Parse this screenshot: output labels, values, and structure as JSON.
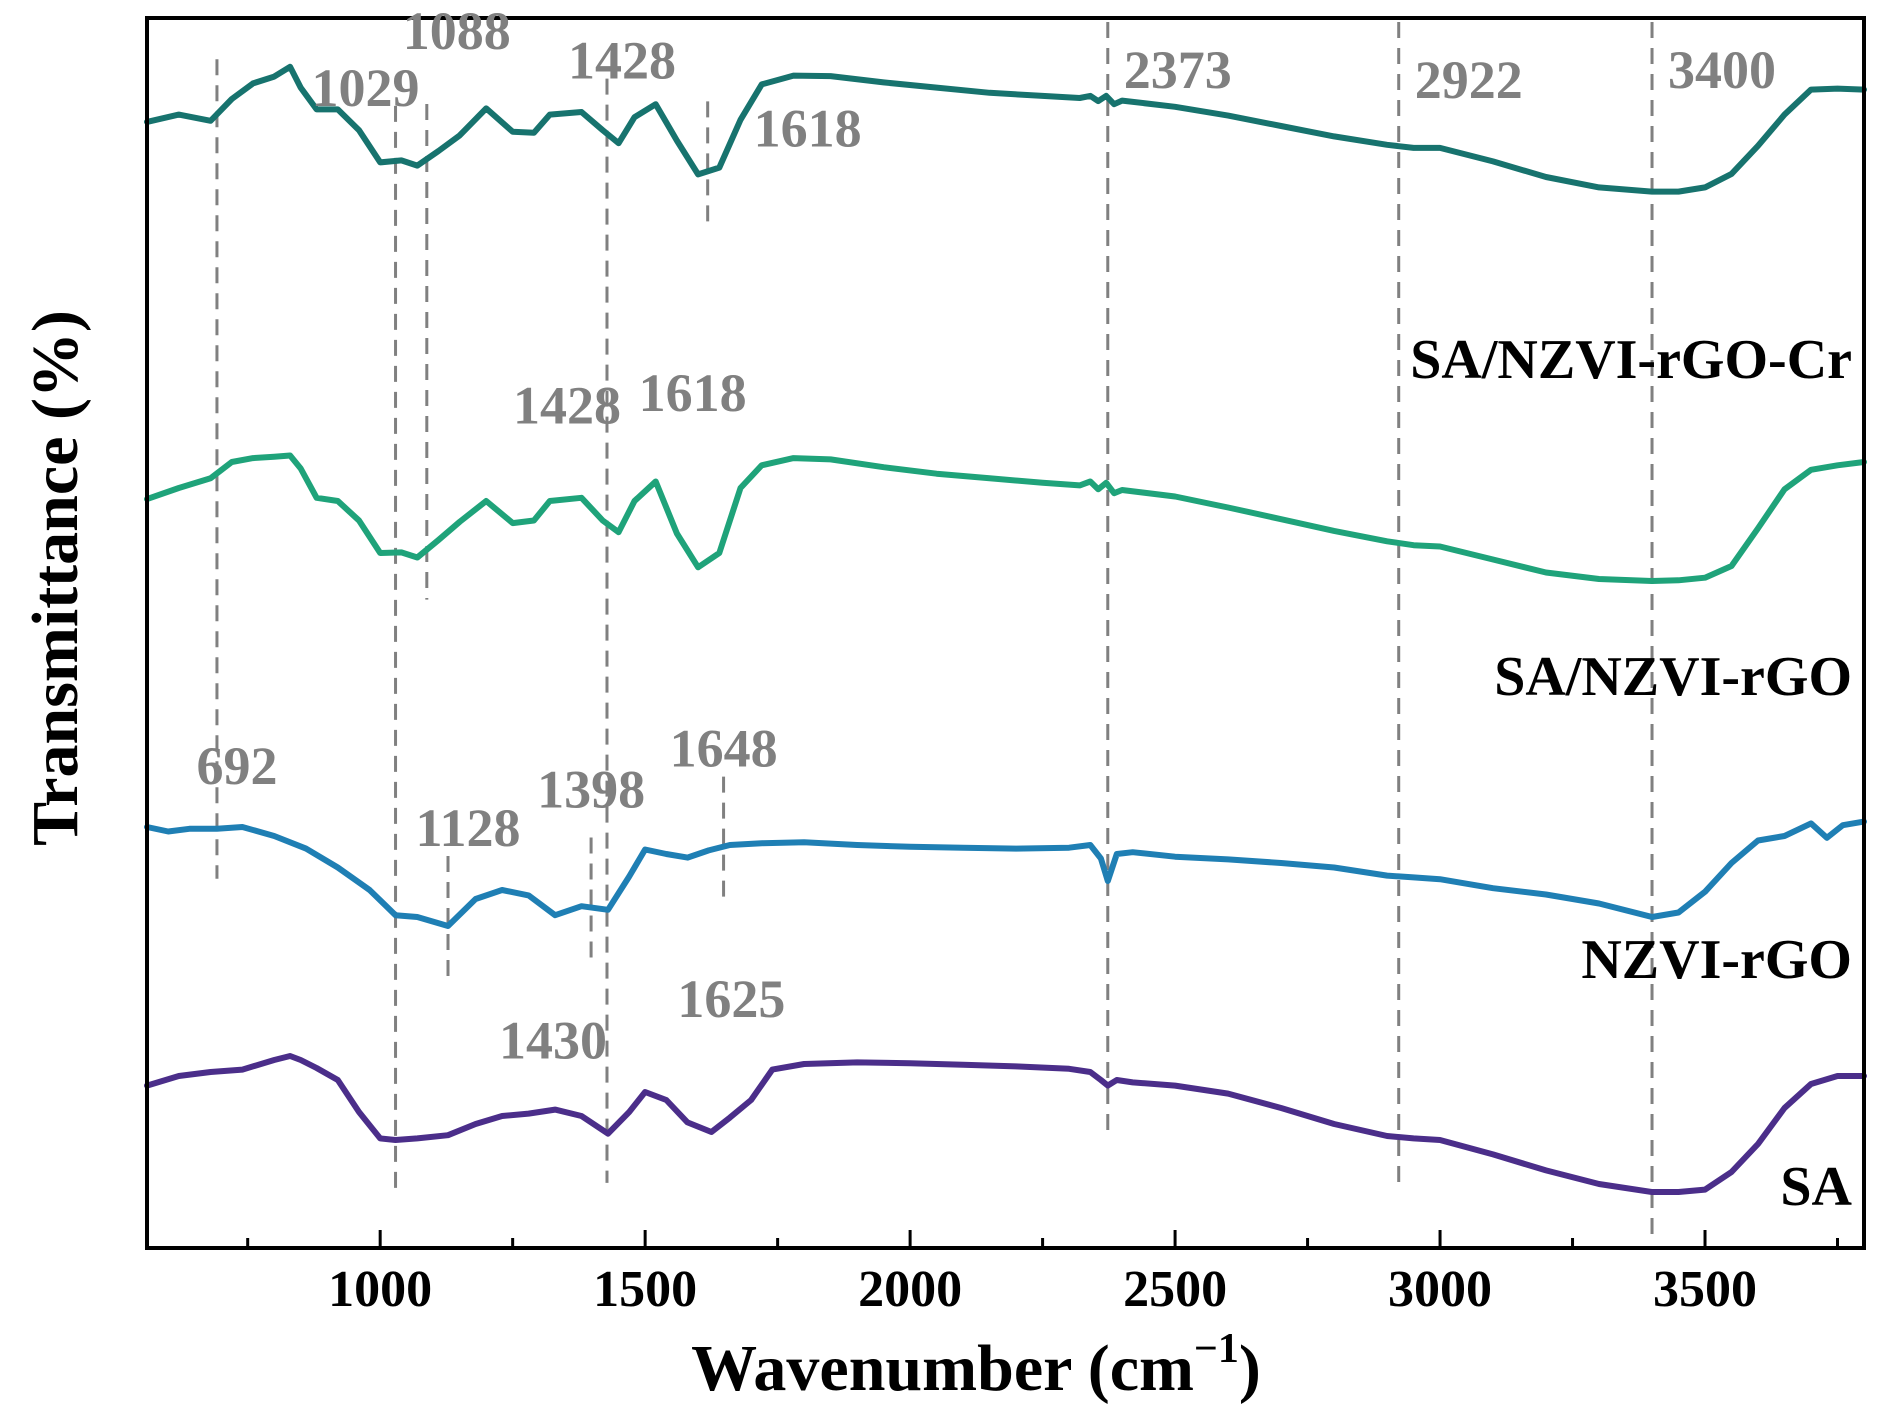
{
  "chart_data": {
    "type": "line",
    "title": "",
    "xlabel": "Wavenumber (cm",
    "xlabel_superscript": "−1",
    "xlabel_suffix": ")",
    "ylabel": "Transmittance (%)",
    "xlim": [
      560,
      3800
    ],
    "ylim": [
      0,
      1
    ],
    "x_ticks": [
      1000,
      1500,
      2000,
      2500,
      3000,
      3500
    ],
    "x_minor_ticks": [
      750,
      1250,
      1750,
      2250,
      2750,
      3250,
      3750
    ],
    "y_ticks_shown": false,
    "reference_lines": [
      {
        "x": 692,
        "from_series": "SA/NZVI-rGO-Cr",
        "to_series": "NZVI-rGO"
      },
      {
        "x": 1029,
        "from_series": "SA/NZVI-rGO-Cr",
        "to_series": "SA"
      },
      {
        "x": 1088,
        "from_series": "SA/NZVI-rGO-Cr",
        "to_series": "SA/NZVI-rGO"
      },
      {
        "x": 1128,
        "from_series": "NZVI-rGO",
        "to_series": "NZVI-rGO"
      },
      {
        "x": 1398,
        "from_series": "NZVI-rGO",
        "to_series": "NZVI-rGO"
      },
      {
        "x": 1428,
        "from_series": "SA/NZVI-rGO-Cr",
        "to_series": "SA"
      },
      {
        "x": 1618,
        "from_series": "SA/NZVI-rGO-Cr",
        "to_series": "SA/NZVI-rGO-Cr"
      },
      {
        "x": 1648,
        "from_series": "NZVI-rGO",
        "to_series": "NZVI-rGO"
      },
      {
        "x": 2373,
        "from_series": "top",
        "to_series": "SA"
      },
      {
        "x": 2922,
        "from_series": "top",
        "to_series": "SA"
      },
      {
        "x": 3400,
        "from_series": "top",
        "to_series": "SA"
      }
    ],
    "annotations": [
      {
        "text": "1029",
        "x": 1029,
        "series": "SA/NZVI-rGO-Cr"
      },
      {
        "text": "1088",
        "x": 1088,
        "series": "SA/NZVI-rGO-Cr"
      },
      {
        "text": "1428",
        "x": 1428,
        "series": "SA/NZVI-rGO-Cr"
      },
      {
        "text": "1618",
        "x": 1618,
        "series": "SA/NZVI-rGO-Cr"
      },
      {
        "text": "2373",
        "x": 2373,
        "series": "SA/NZVI-rGO-Cr"
      },
      {
        "text": "2922",
        "x": 2922,
        "series": "SA/NZVI-rGO-Cr"
      },
      {
        "text": "3400",
        "x": 3400,
        "series": "SA/NZVI-rGO-Cr"
      },
      {
        "text": "1428",
        "x": 1428,
        "series": "SA/NZVI-rGO"
      },
      {
        "text": "1618",
        "x": 1618,
        "series": "SA/NZVI-rGO"
      },
      {
        "text": "692",
        "x": 692,
        "series": "NZVI-rGO"
      },
      {
        "text": "1128",
        "x": 1128,
        "series": "NZVI-rGO"
      },
      {
        "text": "1398",
        "x": 1398,
        "series": "NZVI-rGO"
      },
      {
        "text": "1648",
        "x": 1648,
        "series": "NZVI-rGO"
      },
      {
        "text": "1430",
        "x": 1430,
        "series": "SA"
      },
      {
        "text": "1625",
        "x": 1625,
        "series": "SA"
      }
    ],
    "series": [
      {
        "name": "SA/NZVI-rGO-Cr",
        "color": "#17736E",
        "x": [
          560,
          620,
          680,
          720,
          760,
          800,
          830,
          850,
          880,
          920,
          960,
          1000,
          1040,
          1070,
          1110,
          1150,
          1200,
          1250,
          1290,
          1320,
          1380,
          1420,
          1450,
          1480,
          1520,
          1560,
          1600,
          1640,
          1680,
          1720,
          1780,
          1850,
          1950,
          2050,
          2150,
          2250,
          2320,
          2340,
          2355,
          2370,
          2385,
          2400,
          2500,
          2600,
          2700,
          2800,
          2900,
          2950,
          3000,
          3100,
          3200,
          3300,
          3400,
          3450,
          3500,
          3550,
          3600,
          3650,
          3700,
          3750,
          3800
        ],
        "y": [
          0.756,
          0.77,
          0.758,
          0.8,
          0.83,
          0.843,
          0.862,
          0.822,
          0.78,
          0.78,
          0.74,
          0.678,
          0.682,
          0.672,
          0.7,
          0.73,
          0.782,
          0.737,
          0.735,
          0.77,
          0.775,
          0.74,
          0.715,
          0.765,
          0.79,
          0.72,
          0.655,
          0.668,
          0.76,
          0.828,
          0.845,
          0.844,
          0.832,
          0.822,
          0.812,
          0.806,
          0.802,
          0.806,
          0.796,
          0.806,
          0.79,
          0.797,
          0.785,
          0.768,
          0.748,
          0.728,
          0.712,
          0.706,
          0.706,
          0.68,
          0.65,
          0.63,
          0.622,
          0.622,
          0.63,
          0.656,
          0.71,
          0.77,
          0.818,
          0.82,
          0.818
        ]
      },
      {
        "name": "SA/NZVI-rGO",
        "color": "#1FA37A",
        "x": [
          560,
          620,
          680,
          720,
          760,
          800,
          830,
          850,
          880,
          920,
          960,
          1000,
          1040,
          1070,
          1110,
          1150,
          1200,
          1250,
          1290,
          1320,
          1380,
          1420,
          1450,
          1480,
          1520,
          1560,
          1600,
          1640,
          1680,
          1720,
          1780,
          1850,
          1950,
          2050,
          2150,
          2250,
          2320,
          2340,
          2355,
          2370,
          2385,
          2400,
          2500,
          2600,
          2700,
          2800,
          2900,
          2950,
          3000,
          3100,
          3200,
          3300,
          3400,
          3450,
          3500,
          3550,
          3600,
          3650,
          3700,
          3750,
          3800
        ],
        "y": [
          0.563,
          0.58,
          0.595,
          0.62,
          0.626,
          0.628,
          0.63,
          0.61,
          0.565,
          0.56,
          0.53,
          0.48,
          0.481,
          0.473,
          0.5,
          0.528,
          0.56,
          0.526,
          0.53,
          0.56,
          0.565,
          0.53,
          0.512,
          0.56,
          0.59,
          0.51,
          0.458,
          0.48,
          0.58,
          0.615,
          0.626,
          0.624,
          0.612,
          0.602,
          0.595,
          0.588,
          0.584,
          0.59,
          0.578,
          0.588,
          0.572,
          0.577,
          0.567,
          0.55,
          0.532,
          0.514,
          0.498,
          0.492,
          0.49,
          0.47,
          0.45,
          0.44,
          0.437,
          0.438,
          0.442,
          0.46,
          0.518,
          0.578,
          0.608,
          0.615,
          0.62
        ]
      },
      {
        "name": "NZVI-rGO",
        "color": "#1F7FB4",
        "x": [
          560,
          600,
          640,
          692,
          740,
          800,
          860,
          920,
          980,
          1029,
          1070,
          1128,
          1180,
          1230,
          1280,
          1330,
          1380,
          1430,
          1470,
          1500,
          1540,
          1580,
          1620,
          1660,
          1720,
          1800,
          1900,
          2000,
          2100,
          2200,
          2300,
          2340,
          2360,
          2373,
          2390,
          2420,
          2500,
          2600,
          2700,
          2800,
          2900,
          2950,
          3000,
          3100,
          3200,
          3300,
          3400,
          3450,
          3500,
          3550,
          3600,
          3650,
          3700,
          3730,
          3760,
          3800
        ],
        "y": [
          0.32,
          0.315,
          0.318,
          0.318,
          0.32,
          0.31,
          0.296,
          0.275,
          0.25,
          0.222,
          0.22,
          0.21,
          0.24,
          0.25,
          0.244,
          0.222,
          0.232,
          0.228,
          0.265,
          0.295,
          0.29,
          0.286,
          0.294,
          0.3,
          0.302,
          0.303,
          0.3,
          0.298,
          0.297,
          0.296,
          0.297,
          0.3,
          0.285,
          0.26,
          0.29,
          0.292,
          0.287,
          0.284,
          0.28,
          0.275,
          0.266,
          0.264,
          0.262,
          0.252,
          0.245,
          0.235,
          0.22,
          0.225,
          0.248,
          0.28,
          0.305,
          0.31,
          0.324,
          0.308,
          0.322,
          0.326
        ]
      },
      {
        "name": "SA",
        "color": "#4B2E8A",
        "x": [
          560,
          620,
          680,
          740,
          800,
          830,
          850,
          880,
          920,
          960,
          1000,
          1029,
          1070,
          1128,
          1180,
          1230,
          1280,
          1330,
          1380,
          1430,
          1470,
          1500,
          1540,
          1580,
          1625,
          1660,
          1700,
          1740,
          1800,
          1900,
          2000,
          2100,
          2200,
          2300,
          2340,
          2360,
          2373,
          2390,
          2420,
          2500,
          2600,
          2700,
          2800,
          2900,
          2950,
          3000,
          3100,
          3200,
          3300,
          3400,
          3450,
          3500,
          3550,
          3600,
          3650,
          3700,
          3750,
          3800
        ],
        "y": [
          0.118,
          0.13,
          0.135,
          0.138,
          0.15,
          0.155,
          0.15,
          0.14,
          0.125,
          0.085,
          0.052,
          0.05,
          0.052,
          0.056,
          0.07,
          0.08,
          0.083,
          0.088,
          0.08,
          0.058,
          0.085,
          0.11,
          0.1,
          0.072,
          0.06,
          0.078,
          0.1,
          0.138,
          0.145,
          0.147,
          0.146,
          0.144,
          0.142,
          0.139,
          0.135,
          0.125,
          0.118,
          0.125,
          0.122,
          0.118,
          0.108,
          0.09,
          0.07,
          0.055,
          0.052,
          0.05,
          0.032,
          0.012,
          -0.005,
          -0.015,
          -0.015,
          -0.012,
          0.01,
          0.045,
          0.09,
          0.12,
          0.13,
          0.13
        ]
      }
    ]
  }
}
